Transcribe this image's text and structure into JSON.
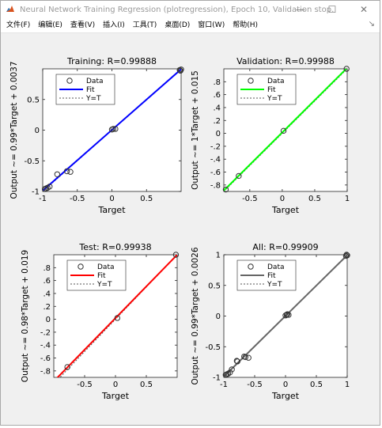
{
  "window": {
    "title": "Neural Network Training Regression (plotregression), Epoch 10, Validation stop.",
    "controls": {
      "minimize": "—",
      "maximize": "☐",
      "close": "✕"
    }
  },
  "menu": {
    "items": [
      "文件(F)",
      "编辑(E)",
      "查看(V)",
      "插入(I)",
      "工具(T)",
      "桌面(D)",
      "窗口(W)",
      "帮助(H)"
    ],
    "pin": "↘"
  },
  "legend": {
    "data": "Data",
    "fit": "Fit",
    "yt": "Y=T"
  },
  "chart_data": [
    {
      "type": "scatter",
      "title": "Training: R=0.99888",
      "xlabel": "Target",
      "ylabel": "Output ~= 0.99*Target + 0.0037",
      "xlim": [
        -1,
        1
      ],
      "ylim": [
        -1,
        1
      ],
      "xticks": [
        -1,
        -0.5,
        0,
        0.5
      ],
      "yticks": [
        -1,
        -0.5,
        0,
        0.5
      ],
      "fit_color": "#0000ff",
      "fit": {
        "slope": 0.99,
        "intercept": 0.0037
      },
      "legend_position": "top-left",
      "points": [
        [
          -0.97,
          -0.96
        ],
        [
          -0.95,
          -0.95
        ],
        [
          -0.93,
          -0.94
        ],
        [
          -0.9,
          -0.92
        ],
        [
          -0.79,
          -0.72
        ],
        [
          -0.65,
          -0.67
        ],
        [
          -0.6,
          -0.68
        ],
        [
          0,
          0.01
        ],
        [
          0.02,
          0.02
        ],
        [
          0.05,
          0.02
        ],
        [
          0.98,
          0.98
        ],
        [
          0.99,
          0.97
        ],
        [
          1,
          0.99
        ]
      ]
    },
    {
      "type": "scatter",
      "title": "Validation: R=0.99988",
      "xlabel": "Target",
      "ylabel": "Output ~= 1*Target + 0.015",
      "xlim": [
        -0.9,
        1
      ],
      "ylim": [
        -0.9,
        1
      ],
      "xticks": [
        -0.5,
        0,
        0.5,
        1
      ],
      "yticks": [
        -0.8,
        -0.6,
        -0.4,
        -0.2,
        0,
        0.2,
        0.4,
        0.6,
        0.8
      ],
      "fit_color": "#00ff00",
      "fit": {
        "slope": 1,
        "intercept": 0.015
      },
      "legend_position": "top-left",
      "points": [
        [
          -0.87,
          -0.87
        ],
        [
          -0.67,
          -0.66
        ],
        [
          0.02,
          0.04
        ],
        [
          0.99,
          1.0
        ]
      ]
    },
    {
      "type": "scatter",
      "title": "Test: R=0.99938",
      "xlabel": "Target",
      "ylabel": "Output ~= 0.98*Target + 0.019",
      "xlim": [
        -1,
        1
      ],
      "ylim": [
        -0.9,
        1
      ],
      "xticks": [
        -0.5,
        0,
        0.5
      ],
      "yticks": [
        -0.8,
        -0.6,
        -0.4,
        -0.2,
        0,
        0.2,
        0.4,
        0.6,
        0.8
      ],
      "fit_color": "#ff0000",
      "fit": {
        "slope": 0.98,
        "intercept": 0.019
      },
      "legend_position": "top-left",
      "points": [
        [
          -0.78,
          -0.74
        ],
        [
          0.03,
          0.02
        ],
        [
          0.98,
          1.0
        ]
      ]
    },
    {
      "type": "scatter",
      "title": "All: R=0.99909",
      "xlabel": "Target",
      "ylabel": "Output ~= 0.99*Target + 0.0026",
      "xlim": [
        -1,
        1
      ],
      "ylim": [
        -1,
        1
      ],
      "xticks": [
        -1,
        -0.5,
        0,
        0.5,
        1
      ],
      "yticks": [
        -1,
        -0.5,
        0,
        0.5,
        1
      ],
      "fit_color": "#666666",
      "fit": {
        "slope": 0.99,
        "intercept": 0.0026
      },
      "legend_position": "top-left",
      "points": [
        [
          -0.97,
          -0.96
        ],
        [
          -0.95,
          -0.95
        ],
        [
          -0.93,
          -0.94
        ],
        [
          -0.9,
          -0.92
        ],
        [
          -0.87,
          -0.87
        ],
        [
          -0.79,
          -0.73
        ],
        [
          -0.78,
          -0.74
        ],
        [
          -0.67,
          -0.66
        ],
        [
          -0.65,
          -0.67
        ],
        [
          -0.6,
          -0.68
        ],
        [
          0,
          0.01
        ],
        [
          0.02,
          0.02
        ],
        [
          0.03,
          0.03
        ],
        [
          0.05,
          0.02
        ],
        [
          0.98,
          0.98
        ],
        [
          0.99,
          1.0
        ],
        [
          1,
          0.99
        ]
      ]
    }
  ]
}
